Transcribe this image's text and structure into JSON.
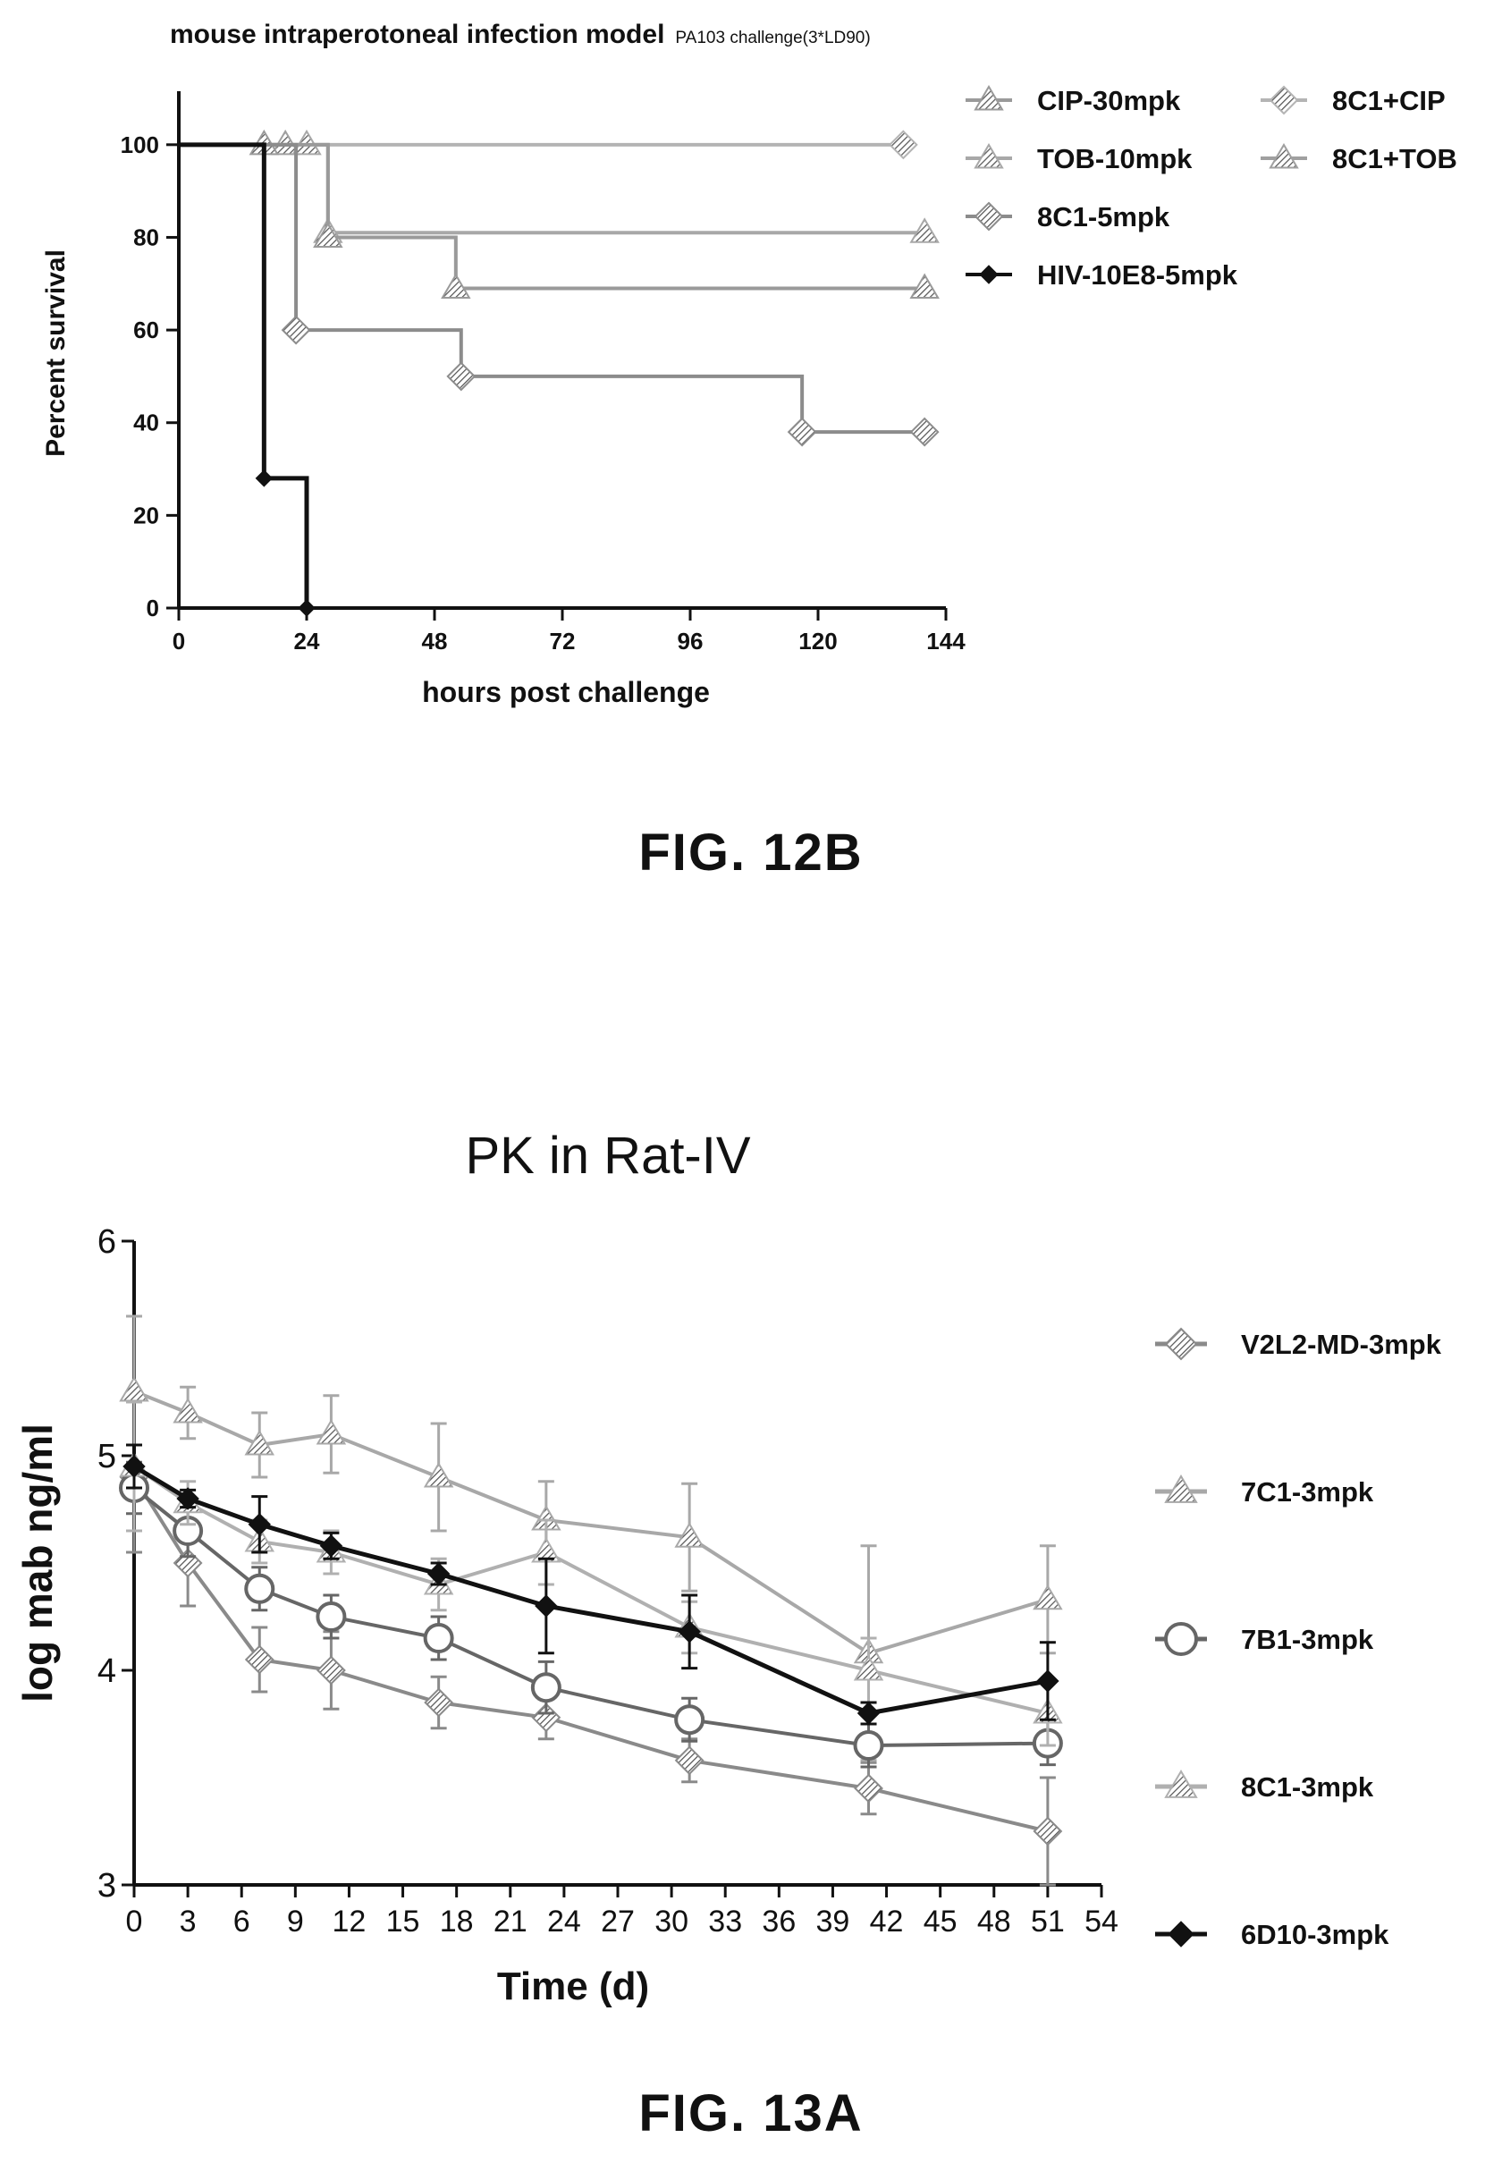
{
  "chart_data": [
    {
      "type": "line",
      "title": "mouse intraperotoneal infection model",
      "subtitle": "PA103 challenge(3*LD90)",
      "xlabel": "hours post challenge",
      "ylabel": "Percent survival",
      "xlim": [
        0,
        144
      ],
      "ylim": [
        0,
        110
      ],
      "xticks": [
        0,
        24,
        48,
        72,
        96,
        120,
        144
      ],
      "yticks": [
        0,
        20,
        40,
        60,
        80,
        100
      ],
      "grid": false,
      "legend_position": "top-right",
      "step": true,
      "series": [
        {
          "name": "CIP-30mpk",
          "color": "#9a9a9a",
          "marker": "tri",
          "x": [
            0,
            16,
            28,
            52,
            140
          ],
          "y": [
            100,
            100,
            80,
            69,
            69
          ]
        },
        {
          "name": "TOB-10mpk",
          "color": "#a8a8a8",
          "marker": "tri",
          "x": [
            0,
            24,
            28,
            140
          ],
          "y": [
            100,
            100,
            81,
            81
          ]
        },
        {
          "name": "8C1-5mpk",
          "color": "#8c8c8c",
          "marker": "hatch",
          "x": [
            0,
            22,
            53,
            117,
            140
          ],
          "y": [
            100,
            60,
            50,
            38,
            38
          ]
        },
        {
          "name": "HIV-10E8-5mpk",
          "color": "#111111",
          "marker": "diamond",
          "x": [
            0,
            16,
            24
          ],
          "y": [
            100,
            28,
            0
          ]
        },
        {
          "name": "8C1+CIP",
          "color": "#b4b4b4",
          "marker": "hatch",
          "x": [
            0,
            136
          ],
          "y": [
            100,
            100
          ]
        },
        {
          "name": "8C1+TOB",
          "color": "#a0a0a0",
          "marker": "tri",
          "x": [
            0,
            20
          ],
          "y": [
            100,
            100
          ]
        }
      ],
      "caption": "FIG. 12B"
    },
    {
      "type": "line",
      "title": "PK in Rat-IV",
      "xlabel": "Time (d)",
      "ylabel": "log mab ng/ml",
      "xlim": [
        0,
        54
      ],
      "ylim": [
        3,
        6
      ],
      "xticks": [
        0,
        3,
        6,
        9,
        12,
        15,
        18,
        21,
        24,
        27,
        30,
        33,
        36,
        39,
        42,
        45,
        48,
        51,
        54
      ],
      "yticks": [
        3,
        4,
        5,
        6
      ],
      "grid": false,
      "legend_position": "right",
      "series": [
        {
          "name": "V2L2-MD-3mpk",
          "color": "#8a8a8a",
          "marker": "hatch",
          "x": [
            0,
            3,
            7,
            11,
            17,
            23,
            31,
            41,
            51
          ],
          "y": [
            4.9,
            4.5,
            4.05,
            4.0,
            3.85,
            3.78,
            3.58,
            3.45,
            3.25
          ],
          "err": [
            0.35,
            0.2,
            0.15,
            0.18,
            0.12,
            0.1,
            0.1,
            0.12,
            0.25
          ]
        },
        {
          "name": "7C1-3mpk",
          "color": "#a8a8a8",
          "marker": "tri",
          "x": [
            0,
            3,
            7,
            11,
            17,
            23,
            31,
            41,
            51
          ],
          "y": [
            5.3,
            5.2,
            5.05,
            5.1,
            4.9,
            4.7,
            4.62,
            4.08,
            4.33
          ],
          "err": [
            0.35,
            0.12,
            0.15,
            0.18,
            0.25,
            0.18,
            0.25,
            0.5,
            0.25
          ]
        },
        {
          "name": "7B1-3mpk",
          "color": "#666666",
          "marker": "circle",
          "x": [
            0,
            3,
            7,
            11,
            17,
            23,
            31,
            41,
            51
          ],
          "y": [
            4.85,
            4.65,
            4.38,
            4.25,
            4.15,
            3.92,
            3.77,
            3.65,
            3.66
          ],
          "err": [
            0.12,
            0.12,
            0.1,
            0.1,
            0.1,
            0.12,
            0.1,
            0.1,
            0.1
          ]
        },
        {
          "name": "8C1-3mpk",
          "color": "#b0b0b0",
          "marker": "tri",
          "x": [
            0,
            3,
            7,
            11,
            17,
            23,
            31,
            41,
            51
          ],
          "y": [
            4.95,
            4.78,
            4.6,
            4.55,
            4.4,
            4.55,
            4.2,
            4.0,
            3.8
          ],
          "err": [
            0.3,
            0.1,
            0.1,
            0.1,
            0.12,
            0.15,
            0.12,
            0.15,
            0.15
          ]
        },
        {
          "name": "6D10-3mpk",
          "color": "#111111",
          "marker": "diamond",
          "x": [
            0,
            3,
            7,
            11,
            17,
            23,
            31,
            41,
            51
          ],
          "y": [
            4.95,
            4.8,
            4.68,
            4.58,
            4.45,
            4.3,
            4.18,
            3.8,
            3.95
          ],
          "err": [
            0.1,
            0.04,
            0.13,
            0.06,
            0.05,
            0.22,
            0.17,
            0.05,
            0.18
          ]
        }
      ],
      "caption": "FIG. 13A"
    }
  ]
}
